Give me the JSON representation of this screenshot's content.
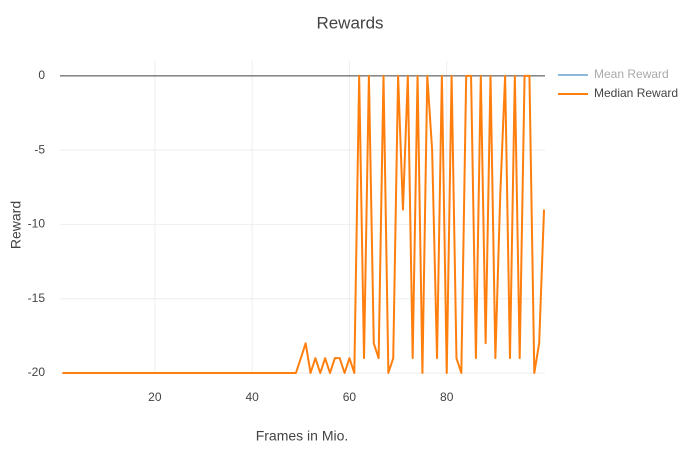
{
  "chart_data": {
    "type": "line",
    "title": "Rewards",
    "x_label": "Frames in Mio.",
    "y_label": "Reward",
    "x": [
      1,
      2,
      3,
      4,
      5,
      6,
      7,
      8,
      9,
      10,
      11,
      12,
      13,
      14,
      15,
      16,
      17,
      18,
      19,
      20,
      21,
      22,
      23,
      24,
      25,
      26,
      27,
      28,
      29,
      30,
      31,
      32,
      33,
      34,
      35,
      36,
      37,
      38,
      39,
      40,
      41,
      42,
      43,
      44,
      45,
      46,
      47,
      48,
      49,
      50,
      51,
      52,
      53,
      54,
      55,
      56,
      57,
      58,
      59,
      60,
      61,
      62,
      63,
      64,
      65,
      66,
      67,
      68,
      69,
      70,
      71,
      72,
      73,
      74,
      75,
      76,
      77,
      78,
      79,
      80,
      81,
      82,
      83,
      84,
      85,
      86,
      87,
      88,
      89,
      90,
      91,
      92,
      93,
      94,
      95,
      96,
      97,
      98,
      99,
      100
    ],
    "series": [
      {
        "name": "Mean Reward",
        "color": "#1f77b4",
        "visible": "legendonly"
      },
      {
        "name": "Median Reward",
        "color": "#ff7f0e",
        "values": [
          -20,
          -20,
          -20,
          -20,
          -20,
          -20,
          -20,
          -20,
          -20,
          -20,
          -20,
          -20,
          -20,
          -20,
          -20,
          -20,
          -20,
          -20,
          -20,
          -20,
          -20,
          -20,
          -20,
          -20,
          -20,
          -20,
          -20,
          -20,
          -20,
          -20,
          -20,
          -20,
          -20,
          -20,
          -20,
          -20,
          -20,
          -20,
          -20,
          -20,
          -20,
          -20,
          -20,
          -20,
          -20,
          -20,
          -20,
          -20,
          -20,
          -19,
          -18,
          -20,
          -19,
          -20,
          -19,
          -20,
          -19,
          -19,
          -20,
          -19,
          -20,
          0,
          -19,
          0,
          -18,
          -19,
          0,
          -20,
          -19,
          0,
          -9,
          0,
          -19,
          0,
          -20,
          0,
          -5,
          -19,
          0,
          -20,
          0,
          -19,
          -20,
          0,
          0,
          -19,
          0,
          -18,
          0,
          -19,
          -8,
          0,
          -19,
          0,
          -19,
          0,
          0,
          -20,
          -18,
          -9
        ]
      }
    ],
    "xlim": [
      0.5,
      100.2
    ],
    "xticks": [
      20,
      40,
      60,
      80
    ],
    "ylim": [
      -20,
      1
    ],
    "yticks": [
      -20,
      -15,
      -10,
      -5,
      0
    ],
    "grid": true,
    "zeroline": true,
    "legend": "right"
  }
}
